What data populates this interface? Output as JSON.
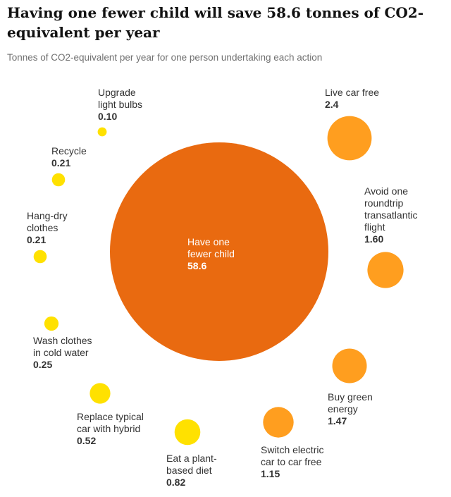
{
  "chart_data": {
    "type": "bubble",
    "title": "Having one fewer child will save 58.6 tonnes of CO2-equivalent per year",
    "subtitle": "Tonnes of CO2-equivalent per year for one person undertaking each action",
    "items": [
      {
        "label": [
          "Have one",
          "fewer child"
        ],
        "value_text": "58.6",
        "value": 58.6,
        "color": "#e96a10"
      },
      {
        "label": [
          "Upgrade",
          "light bulbs"
        ],
        "value_text": "0.10",
        "value": 0.1,
        "color": "#ffe100"
      },
      {
        "label": [
          "Recycle"
        ],
        "value_text": "0.21",
        "value": 0.21,
        "color": "#ffe100"
      },
      {
        "label": [
          "Hang-dry",
          "clothes"
        ],
        "value_text": "0.21",
        "value": 0.21,
        "color": "#ffe100"
      },
      {
        "label": [
          "Wash clothes",
          "in cold water"
        ],
        "value_text": "0.25",
        "value": 0.25,
        "color": "#ffe100"
      },
      {
        "label": [
          "Replace typical",
          "car with hybrid"
        ],
        "value_text": "0.52",
        "value": 0.52,
        "color": "#ffe100"
      },
      {
        "label": [
          "Eat a plant-",
          "based diet"
        ],
        "value_text": "0.82",
        "value": 0.82,
        "color": "#ffe100"
      },
      {
        "label": [
          "Switch electric",
          "car to car free"
        ],
        "value_text": "1.15",
        "value": 1.15,
        "color": "#ff9e1f"
      },
      {
        "label": [
          "Buy green",
          "energy"
        ],
        "value_text": "1.47",
        "value": 1.47,
        "color": "#ff9e1f"
      },
      {
        "label": [
          "Avoid one",
          "roundtrip",
          "transatlantic",
          "flight"
        ],
        "value_text": "1.60",
        "value": 1.6,
        "color": "#ff9e1f"
      },
      {
        "label": [
          "Live car free"
        ],
        "value_text": "2.4",
        "value": 2.4,
        "color": "#ff9e1f"
      }
    ]
  }
}
